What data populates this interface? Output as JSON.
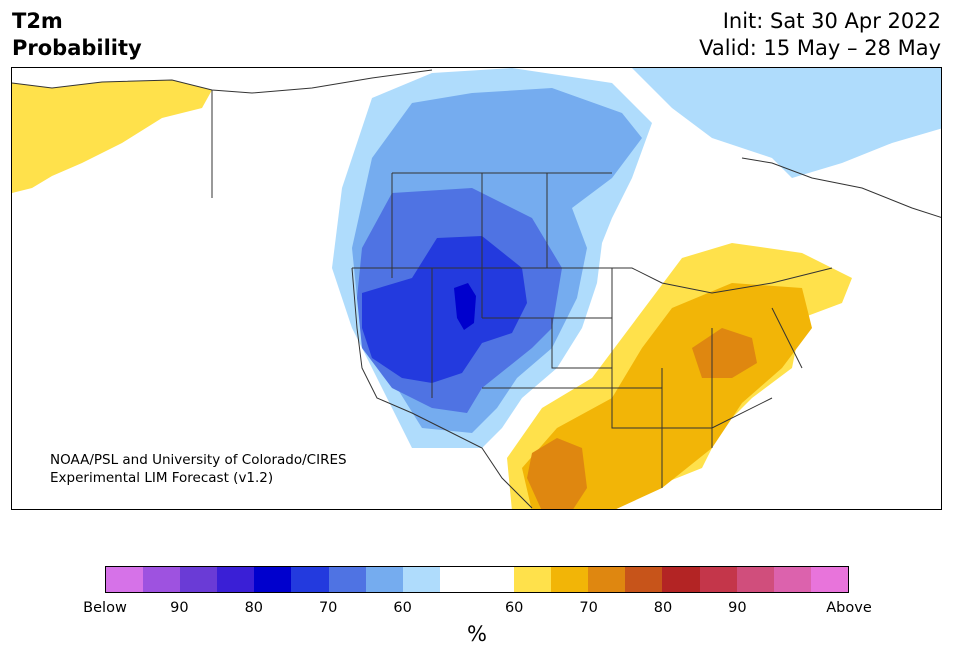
{
  "title": {
    "line1": "T2m",
    "line2": "Probability"
  },
  "run": {
    "init": "Init: Sat 30 Apr 2022",
    "valid": "Valid: 15 May – 28 May"
  },
  "credit": {
    "line1": "NOAA/PSL and University of Colorado/CIRES",
    "line2": "Experimental LIM Forecast (v1.2)"
  },
  "colorbar": {
    "colors": [
      "#d672e8",
      "#9e52e0",
      "#6a3bd6",
      "#3a1fd6",
      "#0000cd",
      "#233ade",
      "#4f73e3",
      "#75acef",
      "#afdcfc",
      "#ffffff",
      "#ffffff",
      "#ffe14b",
      "#f2b507",
      "#df8710",
      "#c7541a",
      "#b32424",
      "#c4364a",
      "#d04e7c",
      "#dc62ad",
      "#e874db"
    ],
    "tick_labels": [
      "Below",
      "90",
      "80",
      "70",
      "60",
      "60",
      "70",
      "80",
      "90",
      "Above"
    ],
    "label": "%"
  },
  "map_fill": {
    "above_50": "#ffe14b",
    "above_60": "#f2b507",
    "above_70": "#df8710",
    "below_50": "#afdcfc",
    "below_60": "#75acef",
    "below_70": "#4f73e3",
    "below_80": "#233ade",
    "below_90": "#0000cd",
    "neutral": "#ffffff",
    "boundary": "#333333"
  }
}
